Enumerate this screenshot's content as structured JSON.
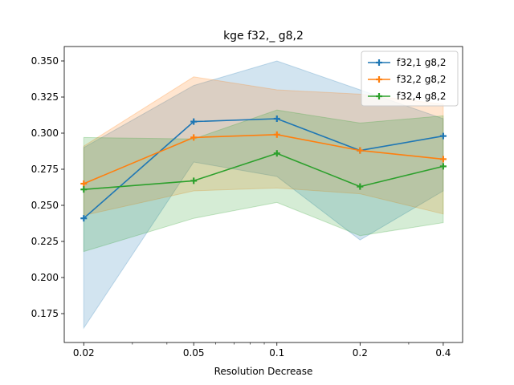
{
  "chart_data": {
    "type": "line",
    "title": "kge f32,_ g8,2",
    "xlabel": "Resolution Decrease",
    "ylabel": "",
    "x_scale": "log",
    "x": [
      0.02,
      0.05,
      0.1,
      0.2,
      0.4
    ],
    "x_tick_labels": [
      "0.02",
      "0.05",
      "0.1",
      "0.2",
      "0.4"
    ],
    "xlim": [
      0.017,
      0.47
    ],
    "ylim": [
      0.155,
      0.36
    ],
    "y_ticks": [
      0.175,
      0.2,
      0.225,
      0.25,
      0.275,
      0.3,
      0.325,
      0.35
    ],
    "y_tick_labels": [
      "0.175",
      "0.200",
      "0.225",
      "0.250",
      "0.275",
      "0.300",
      "0.325",
      "0.350"
    ],
    "grid": false,
    "legend_position": "top-right",
    "marker": "plus",
    "series": [
      {
        "name": "f32,1 g8,2",
        "color": "#1f77b4",
        "values": [
          0.241,
          0.308,
          0.31,
          0.288,
          0.298
        ],
        "band_lower": [
          0.165,
          0.28,
          0.27,
          0.226,
          0.26
        ],
        "band_upper": [
          0.29,
          0.333,
          0.35,
          0.33,
          0.31
        ]
      },
      {
        "name": "f32,2 g8,2",
        "color": "#ff7f0e",
        "values": [
          0.265,
          0.297,
          0.299,
          0.288,
          0.282
        ],
        "band_lower": [
          0.243,
          0.26,
          0.262,
          0.258,
          0.244
        ],
        "band_upper": [
          0.291,
          0.339,
          0.33,
          0.327,
          0.32
        ]
      },
      {
        "name": "f32,4 g8,2",
        "color": "#2ca02c",
        "values": [
          0.261,
          0.267,
          0.286,
          0.263,
          0.277
        ],
        "band_lower": [
          0.218,
          0.241,
          0.252,
          0.229,
          0.238
        ],
        "band_upper": [
          0.297,
          0.296,
          0.316,
          0.307,
          0.312
        ]
      }
    ]
  }
}
